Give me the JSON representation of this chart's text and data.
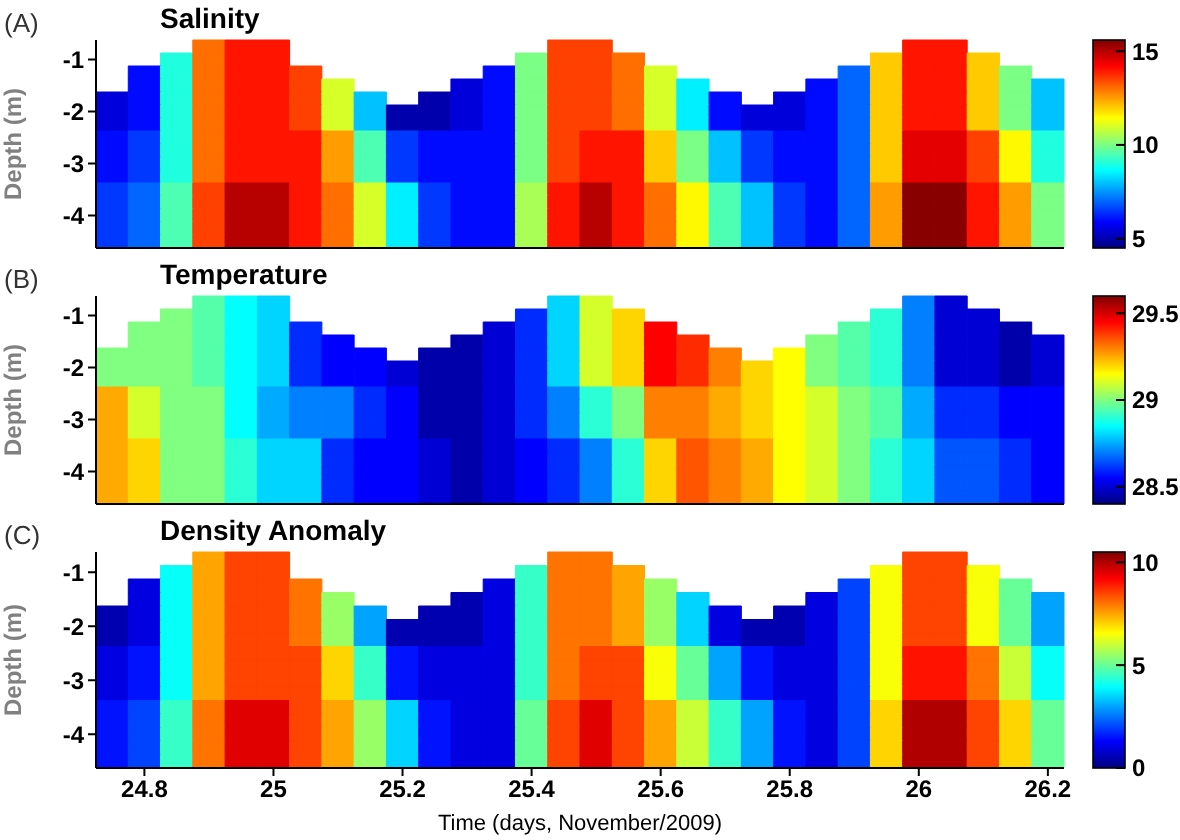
{
  "chart_data": [
    {
      "type": "heatmap",
      "title": "Salinity",
      "ylabel": "Depth (m)",
      "annotations": [
        "(A)"
      ],
      "tick_labels": "y",
      "x": [
        24.75,
        24.8,
        24.85,
        24.9,
        24.95,
        25,
        25.05,
        25.1,
        25.15,
        25.2,
        25.25,
        25.3,
        25.35,
        25.4,
        25.45,
        25.5,
        25.55,
        25.6,
        25.65,
        25.7,
        25.75,
        25.8,
        25.85,
        25.9,
        25.95,
        26,
        26.05,
        26.1,
        26.15,
        26.2
      ],
      "y_categories": [
        null,
        "-1",
        null,
        null,
        null,
        "-2",
        null,
        null,
        null,
        "-3",
        null,
        null,
        null,
        "-4",
        null,
        null
      ],
      "xlim": [
        24.725,
        26.225
      ],
      "xticks": [
        24.8,
        25,
        25.2,
        25.4,
        25.6,
        25.8,
        26,
        26.2
      ],
      "clim": [
        4.5,
        15.6
      ],
      "cticks": [
        5,
        10,
        15
      ],
      "cells": [
        [
          null,
          null,
          null,
          13,
          14,
          14,
          null,
          null,
          null,
          null,
          null,
          null,
          null,
          null,
          13.5,
          13.5,
          null,
          null,
          null,
          null,
          null,
          null,
          null,
          null,
          null,
          14,
          14,
          null,
          null,
          null
        ],
        [
          null,
          null,
          9,
          13,
          14,
          14,
          null,
          null,
          null,
          null,
          null,
          null,
          null,
          10,
          13.5,
          13.5,
          13,
          null,
          null,
          null,
          null,
          null,
          null,
          null,
          12,
          14,
          14,
          12,
          null,
          null
        ],
        [
          null,
          6,
          9,
          13,
          14,
          14,
          13.5,
          null,
          null,
          null,
          null,
          null,
          6,
          10,
          13.5,
          13.5,
          13,
          11,
          null,
          null,
          null,
          null,
          null,
          7,
          12,
          14,
          14,
          12,
          10,
          null
        ],
        [
          null,
          6,
          9,
          13,
          14,
          14,
          13.5,
          11,
          null,
          null,
          null,
          5.5,
          6,
          10,
          13.5,
          13.5,
          13,
          11,
          8.5,
          null,
          null,
          null,
          6,
          7,
          12,
          14,
          14,
          12,
          10,
          8
        ],
        [
          5.5,
          6,
          9,
          13,
          14,
          14,
          13.5,
          11,
          8,
          null,
          5,
          5.5,
          6,
          10,
          13.5,
          13.5,
          13,
          11,
          8.5,
          6,
          null,
          5.5,
          6,
          7,
          12,
          14,
          14,
          12,
          10,
          8
        ],
        [
          5.5,
          6,
          9,
          13,
          14,
          14,
          13.5,
          11,
          8,
          5,
          5,
          5.5,
          6,
          10,
          13.5,
          13.5,
          13,
          11,
          8.5,
          6,
          5.5,
          5.5,
          6,
          7,
          12,
          14,
          14,
          12,
          10,
          8
        ],
        [
          5.5,
          6,
          9,
          13,
          14,
          14,
          13.5,
          11,
          8,
          5,
          5,
          5.5,
          6,
          10,
          13.5,
          13.5,
          13,
          11,
          8.5,
          6,
          5.5,
          5.5,
          6,
          7,
          12,
          14,
          14,
          12,
          10,
          8
        ],
        [
          6,
          6.5,
          9,
          13,
          14,
          14,
          14,
          12.5,
          9.5,
          6.5,
          6,
          6,
          6,
          10,
          13.5,
          14,
          14,
          12,
          10,
          8,
          6.5,
          6,
          6,
          7,
          12,
          14.5,
          14.5,
          13.5,
          11.5,
          9
        ],
        [
          6,
          6.5,
          9,
          13,
          14,
          14,
          14,
          12.5,
          9.5,
          6.5,
          6,
          6,
          6,
          10,
          13.5,
          14,
          14,
          12,
          10,
          8,
          6.5,
          6,
          6,
          7,
          12,
          14.5,
          14.5,
          13.5,
          11.5,
          9
        ],
        [
          6,
          6.5,
          9,
          13,
          14,
          14,
          14,
          12.5,
          9.5,
          6.5,
          6,
          6,
          6,
          10,
          13.5,
          14,
          14,
          12,
          10,
          8,
          6.5,
          6,
          6,
          7,
          12,
          14.5,
          14.5,
          13.5,
          11.5,
          9
        ],
        [
          6,
          6.5,
          9,
          13,
          14,
          14,
          14,
          12.5,
          9.5,
          6.5,
          6,
          6,
          6,
          10,
          13.5,
          14,
          14,
          12,
          10,
          8,
          6.5,
          6,
          6,
          7,
          12,
          14.5,
          14.5,
          13.5,
          11.5,
          9
        ],
        [
          6.5,
          7,
          9.5,
          13.5,
          15,
          15,
          14,
          13,
          11,
          8.5,
          6.5,
          6,
          6,
          10.5,
          14,
          15,
          14,
          13,
          11.5,
          9.5,
          8,
          6.5,
          6,
          7,
          12.5,
          15.5,
          15.5,
          14,
          12.5,
          10
        ],
        [
          6.5,
          7,
          9.5,
          13.5,
          15,
          15,
          14,
          13,
          11,
          8.5,
          6.5,
          6,
          6,
          10.5,
          14,
          15,
          14,
          13,
          11.5,
          9.5,
          8,
          6.5,
          6,
          7,
          12.5,
          15.5,
          15.5,
          14,
          12.5,
          10
        ],
        [
          6.5,
          7,
          9.5,
          13.5,
          15,
          15,
          14,
          13,
          11,
          8.5,
          6.5,
          6,
          6,
          10.5,
          14,
          15,
          14,
          13,
          11.5,
          9.5,
          8,
          6.5,
          6,
          7,
          12.5,
          15.5,
          15.5,
          14,
          12.5,
          10
        ],
        [
          6.5,
          7,
          9.5,
          13.5,
          15,
          15,
          14,
          13,
          11,
          8.5,
          6.5,
          6,
          6,
          10.5,
          14,
          15,
          14,
          13,
          11.5,
          9.5,
          8,
          6.5,
          6,
          7,
          12.5,
          15.5,
          15.5,
          14,
          12.5,
          10
        ],
        [
          6.5,
          7,
          9.5,
          13.5,
          15,
          15,
          14,
          13,
          11,
          8.5,
          6.5,
          6,
          6,
          10.5,
          14,
          15,
          14,
          13,
          11.5,
          9.5,
          8,
          6.5,
          6,
          7,
          12.5,
          15.5,
          15.5,
          14,
          12.5,
          10
        ]
      ]
    },
    {
      "type": "heatmap",
      "title": "Temperature",
      "ylabel": "Depth (m)",
      "annotations": [
        "(B)"
      ],
      "tick_labels": "y",
      "x": [
        24.75,
        24.8,
        24.85,
        24.9,
        24.95,
        25,
        25.05,
        25.1,
        25.15,
        25.2,
        25.25,
        25.3,
        25.35,
        25.4,
        25.45,
        25.5,
        25.55,
        25.6,
        25.65,
        25.7,
        25.75,
        25.8,
        25.85,
        25.9,
        25.95,
        26,
        26.05,
        26.1,
        26.15,
        26.2
      ],
      "y_categories": [
        null,
        "-1",
        null,
        null,
        null,
        "-2",
        null,
        null,
        null,
        "-3",
        null,
        null,
        null,
        "-4",
        null,
        null
      ],
      "xlim": [
        24.725,
        26.225
      ],
      "xticks": [
        24.8,
        25,
        25.2,
        25.4,
        25.6,
        25.8,
        26,
        26.2
      ],
      "clim": [
        28.4,
        29.6
      ],
      "cticks": [
        28.5,
        29,
        29.5
      ],
      "cells": [
        [
          null,
          null,
          null,
          28.95,
          28.85,
          28.8,
          null,
          null,
          null,
          null,
          null,
          null,
          null,
          null,
          28.8,
          29.1,
          null,
          null,
          null,
          null,
          null,
          null,
          null,
          null,
          null,
          28.7,
          28.5,
          null,
          null,
          null
        ],
        [
          null,
          null,
          29,
          28.95,
          28.85,
          28.8,
          null,
          null,
          null,
          null,
          null,
          null,
          null,
          28.6,
          28.8,
          29.1,
          29.2,
          null,
          null,
          null,
          null,
          null,
          null,
          null,
          28.9,
          28.7,
          28.5,
          28.5,
          null,
          null
        ],
        [
          null,
          29,
          29,
          28.95,
          28.85,
          28.8,
          28.6,
          null,
          null,
          null,
          null,
          null,
          28.5,
          28.6,
          28.8,
          29.1,
          29.2,
          29.45,
          null,
          null,
          null,
          null,
          null,
          28.95,
          28.9,
          28.7,
          28.5,
          28.5,
          28.45,
          null
        ],
        [
          null,
          29,
          29,
          28.95,
          28.85,
          28.8,
          28.6,
          28.55,
          null,
          null,
          null,
          28.45,
          28.5,
          28.6,
          28.8,
          29.1,
          29.2,
          29.45,
          29.4,
          null,
          null,
          null,
          29,
          28.95,
          28.9,
          28.7,
          28.5,
          28.5,
          28.45,
          28.5
        ],
        [
          29,
          29,
          29,
          28.95,
          28.85,
          28.8,
          28.6,
          28.55,
          28.55,
          null,
          28.45,
          28.45,
          28.5,
          28.6,
          28.8,
          29.1,
          29.2,
          29.45,
          29.4,
          29.3,
          null,
          29.15,
          29,
          28.95,
          28.9,
          28.7,
          28.5,
          28.5,
          28.45,
          28.5
        ],
        [
          29,
          29,
          29,
          28.95,
          28.85,
          28.8,
          28.6,
          28.55,
          28.55,
          28.5,
          28.45,
          28.45,
          28.5,
          28.6,
          28.8,
          29.1,
          29.2,
          29.45,
          29.4,
          29.3,
          29.2,
          29.15,
          29,
          28.95,
          28.9,
          28.7,
          28.5,
          28.5,
          28.45,
          28.5
        ],
        [
          29,
          29,
          29,
          28.95,
          28.85,
          28.8,
          28.6,
          28.55,
          28.55,
          28.5,
          28.45,
          28.45,
          28.5,
          28.6,
          28.8,
          29.1,
          29.2,
          29.45,
          29.4,
          29.3,
          29.2,
          29.15,
          29,
          28.95,
          28.9,
          28.7,
          28.5,
          28.5,
          28.45,
          28.5
        ],
        [
          29.25,
          29.1,
          29,
          29,
          28.85,
          28.75,
          28.7,
          28.7,
          28.6,
          28.55,
          28.45,
          28.45,
          28.5,
          28.6,
          28.7,
          28.9,
          29,
          29.3,
          29.3,
          29.25,
          29.2,
          29.15,
          29.1,
          29,
          28.95,
          28.75,
          28.6,
          28.6,
          28.55,
          28.55
        ],
        [
          29.25,
          29.1,
          29,
          29,
          28.85,
          28.75,
          28.7,
          28.7,
          28.6,
          28.55,
          28.45,
          28.45,
          28.5,
          28.6,
          28.7,
          28.9,
          29,
          29.3,
          29.3,
          29.25,
          29.2,
          29.15,
          29.1,
          29,
          28.95,
          28.75,
          28.6,
          28.6,
          28.55,
          28.55
        ],
        [
          29.25,
          29.1,
          29,
          29,
          28.85,
          28.75,
          28.7,
          28.7,
          28.6,
          28.55,
          28.45,
          28.45,
          28.5,
          28.6,
          28.7,
          28.9,
          29,
          29.3,
          29.3,
          29.25,
          29.2,
          29.15,
          29.1,
          29,
          28.95,
          28.75,
          28.6,
          28.6,
          28.55,
          28.55
        ],
        [
          29.25,
          29.1,
          29,
          29,
          28.85,
          28.75,
          28.7,
          28.7,
          28.6,
          28.55,
          28.45,
          28.45,
          28.5,
          28.6,
          28.7,
          28.9,
          29,
          29.3,
          29.3,
          29.25,
          29.2,
          29.15,
          29.1,
          29,
          28.95,
          28.75,
          28.6,
          28.6,
          28.55,
          28.55
        ],
        [
          29.25,
          29.2,
          29,
          29,
          28.9,
          28.8,
          28.8,
          28.6,
          28.55,
          28.55,
          28.5,
          28.45,
          28.5,
          28.55,
          28.6,
          28.7,
          28.9,
          29.2,
          29.35,
          29.3,
          29.25,
          29.15,
          29.1,
          29,
          28.9,
          28.8,
          28.65,
          28.65,
          28.6,
          28.55
        ],
        [
          29.25,
          29.2,
          29,
          29,
          28.9,
          28.8,
          28.8,
          28.6,
          28.55,
          28.55,
          28.5,
          28.45,
          28.5,
          28.55,
          28.6,
          28.7,
          28.9,
          29.2,
          29.35,
          29.3,
          29.25,
          29.15,
          29.1,
          29,
          28.9,
          28.8,
          28.65,
          28.65,
          28.6,
          28.55
        ],
        [
          29.25,
          29.2,
          29,
          29,
          28.9,
          28.8,
          28.8,
          28.6,
          28.55,
          28.55,
          28.5,
          28.45,
          28.5,
          28.55,
          28.6,
          28.7,
          28.9,
          29.2,
          29.35,
          29.3,
          29.25,
          29.15,
          29.1,
          29,
          28.9,
          28.8,
          28.65,
          28.65,
          28.6,
          28.55
        ],
        [
          29.25,
          29.2,
          29,
          29,
          28.9,
          28.8,
          28.8,
          28.6,
          28.55,
          28.55,
          28.5,
          28.45,
          28.5,
          28.55,
          28.6,
          28.7,
          28.9,
          29.2,
          29.35,
          29.3,
          29.25,
          29.15,
          29.1,
          29,
          28.9,
          28.8,
          28.65,
          28.65,
          28.6,
          28.55
        ],
        [
          29.25,
          29.2,
          29,
          29,
          28.9,
          28.8,
          28.8,
          28.6,
          28.55,
          28.55,
          28.5,
          28.45,
          28.5,
          28.55,
          28.6,
          28.7,
          28.9,
          29.2,
          29.35,
          29.3,
          29.25,
          29.15,
          29.1,
          29,
          28.9,
          28.8,
          28.65,
          28.65,
          28.6,
          28.55
        ]
      ]
    },
    {
      "type": "heatmap",
      "title": "Density Anomaly",
      "xlabel": "Time (days, November/2009)",
      "ylabel": "Depth (m)",
      "annotations": [
        "(C)"
      ],
      "x": [
        24.75,
        24.8,
        24.85,
        24.9,
        24.95,
        25,
        25.05,
        25.1,
        25.15,
        25.2,
        25.25,
        25.3,
        25.35,
        25.4,
        25.45,
        25.5,
        25.55,
        25.6,
        25.65,
        25.7,
        25.75,
        25.8,
        25.85,
        25.9,
        25.95,
        26,
        26.05,
        26.1,
        26.15,
        26.2
      ],
      "y_categories": [
        null,
        "-1",
        null,
        null,
        null,
        "-2",
        null,
        null,
        null,
        "-3",
        null,
        null,
        null,
        "-4",
        null,
        null
      ],
      "xlim": [
        24.725,
        26.225
      ],
      "xticks": [
        24.8,
        25,
        25.2,
        25.4,
        25.6,
        25.8,
        26,
        26.2
      ],
      "clim": [
        0,
        10.5
      ],
      "cticks": [
        0,
        5,
        10
      ],
      "cells": [
        [
          null,
          null,
          null,
          7.5,
          8.5,
          8.5,
          null,
          null,
          null,
          null,
          null,
          null,
          null,
          null,
          8,
          8,
          null,
          null,
          null,
          null,
          null,
          null,
          null,
          null,
          null,
          8.5,
          8.5,
          null,
          null,
          null
        ],
        [
          null,
          null,
          4,
          7.5,
          8.5,
          8.5,
          null,
          null,
          null,
          null,
          null,
          null,
          null,
          4.5,
          8,
          8,
          7.5,
          null,
          null,
          null,
          null,
          null,
          null,
          null,
          6.5,
          8.5,
          8.5,
          6.5,
          null,
          null
        ],
        [
          null,
          1,
          4,
          7.5,
          8.5,
          8.5,
          8,
          null,
          null,
          null,
          null,
          null,
          1,
          4.5,
          8,
          8,
          7.5,
          5.5,
          null,
          null,
          null,
          null,
          null,
          2,
          6.5,
          8.5,
          8.5,
          6.5,
          5,
          null
        ],
        [
          null,
          1,
          4,
          7.5,
          8.5,
          8.5,
          8,
          5.5,
          null,
          null,
          null,
          0.5,
          1,
          4.5,
          8,
          8,
          7.5,
          5.5,
          3.5,
          null,
          null,
          null,
          1,
          2,
          6.5,
          8.5,
          8.5,
          6.5,
          5,
          3
        ],
        [
          0.5,
          1,
          4,
          7.5,
          8.5,
          8.5,
          8,
          5.5,
          3,
          null,
          0.5,
          0.5,
          1,
          4.5,
          8,
          8,
          7.5,
          5.5,
          3.5,
          1,
          null,
          0.5,
          1,
          2,
          6.5,
          8.5,
          8.5,
          6.5,
          5,
          3
        ],
        [
          0.5,
          1,
          4,
          7.5,
          8.5,
          8.5,
          8,
          5.5,
          3,
          0.5,
          0.5,
          0.5,
          1,
          4.5,
          8,
          8,
          7.5,
          5.5,
          3.5,
          1,
          0.5,
          0.5,
          1,
          2,
          6.5,
          8.5,
          8.5,
          6.5,
          5,
          3
        ],
        [
          0.5,
          1,
          4,
          7.5,
          8.5,
          8.5,
          8,
          5.5,
          3,
          0.5,
          0.5,
          0.5,
          1,
          4.5,
          8,
          8,
          7.5,
          5.5,
          3.5,
          1,
          0.5,
          0.5,
          1,
          2,
          6.5,
          8.5,
          8.5,
          6.5,
          5,
          3
        ],
        [
          1,
          1.5,
          4,
          7.5,
          8.5,
          8.5,
          8.5,
          7,
          4.5,
          1.5,
          1,
          1,
          1,
          4.5,
          8,
          8.5,
          8.5,
          6.5,
          5,
          3,
          1.5,
          1,
          1,
          2,
          6.5,
          9,
          9,
          8,
          6,
          4
        ],
        [
          1,
          1.5,
          4,
          7.5,
          8.5,
          8.5,
          8.5,
          7,
          4.5,
          1.5,
          1,
          1,
          1,
          4.5,
          8,
          8.5,
          8.5,
          6.5,
          5,
          3,
          1.5,
          1,
          1,
          2,
          6.5,
          9,
          9,
          8,
          6,
          4
        ],
        [
          1,
          1.5,
          4,
          7.5,
          8.5,
          8.5,
          8.5,
          7,
          4.5,
          1.5,
          1,
          1,
          1,
          4.5,
          8,
          8.5,
          8.5,
          6.5,
          5,
          3,
          1.5,
          1,
          1,
          2,
          6.5,
          9,
          9,
          8,
          6,
          4
        ],
        [
          1,
          1.5,
          4,
          7.5,
          8.5,
          8.5,
          8.5,
          7,
          4.5,
          1.5,
          1,
          1,
          1,
          4.5,
          8,
          8.5,
          8.5,
          6.5,
          5,
          3,
          1.5,
          1,
          1,
          2,
          6.5,
          9,
          9,
          8,
          6,
          4
        ],
        [
          1.5,
          2,
          4.5,
          8,
          9.5,
          9.5,
          8.5,
          7.5,
          5.5,
          3.5,
          1.5,
          1,
          1,
          5,
          8.5,
          9.5,
          8.5,
          7.5,
          6,
          4.5,
          3,
          1.5,
          1,
          2,
          7,
          10,
          10,
          8.5,
          7,
          5
        ],
        [
          1.5,
          2,
          4.5,
          8,
          9.5,
          9.5,
          8.5,
          7.5,
          5.5,
          3.5,
          1.5,
          1,
          1,
          5,
          8.5,
          9.5,
          8.5,
          7.5,
          6,
          4.5,
          3,
          1.5,
          1,
          2,
          7,
          10,
          10,
          8.5,
          7,
          5
        ],
        [
          1.5,
          2,
          4.5,
          8,
          9.5,
          9.5,
          8.5,
          7.5,
          5.5,
          3.5,
          1.5,
          1,
          1,
          5,
          8.5,
          9.5,
          8.5,
          7.5,
          6,
          4.5,
          3,
          1.5,
          1,
          2,
          7,
          10,
          10,
          8.5,
          7,
          5
        ],
        [
          1.5,
          2,
          4.5,
          8,
          9.5,
          9.5,
          8.5,
          7.5,
          5.5,
          3.5,
          1.5,
          1,
          1,
          5,
          8.5,
          9.5,
          8.5,
          7.5,
          6,
          4.5,
          3,
          1.5,
          1,
          2,
          7,
          10,
          10,
          8.5,
          7,
          5
        ],
        [
          1.5,
          2,
          4.5,
          8,
          9.5,
          9.5,
          8.5,
          7.5,
          5.5,
          3.5,
          1.5,
          1,
          1,
          5,
          8.5,
          9.5,
          8.5,
          7.5,
          6,
          4.5,
          3,
          1.5,
          1,
          2,
          7,
          10,
          10,
          8.5,
          7,
          5
        ]
      ]
    }
  ]
}
